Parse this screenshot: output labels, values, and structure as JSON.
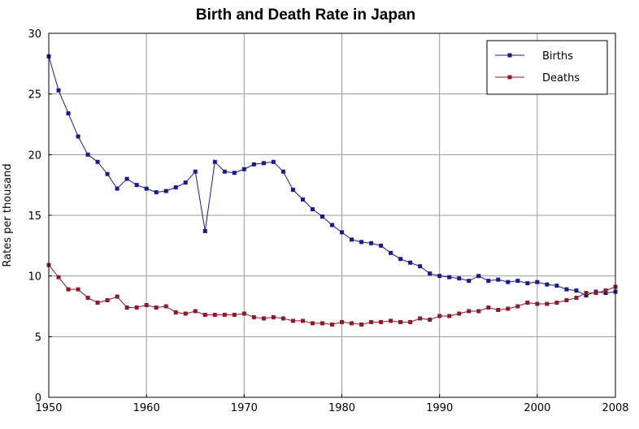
{
  "chart_data": {
    "type": "line",
    "title": "Birth and Death Rate in Japan",
    "xlabel": "",
    "ylabel": "Rates per thousand",
    "xlim": [
      1950,
      2008
    ],
    "ylim": [
      0,
      30
    ],
    "x_ticks": [
      1950,
      1960,
      1970,
      1980,
      1990,
      2000,
      2008
    ],
    "y_ticks": [
      0,
      5,
      10,
      15,
      20,
      25,
      30
    ],
    "grid": true,
    "legend_position": "top-right",
    "x": [
      1950,
      1951,
      1952,
      1953,
      1954,
      1955,
      1956,
      1957,
      1958,
      1959,
      1960,
      1961,
      1962,
      1963,
      1964,
      1965,
      1966,
      1967,
      1968,
      1969,
      1970,
      1971,
      1972,
      1973,
      1974,
      1975,
      1976,
      1977,
      1978,
      1979,
      1980,
      1981,
      1982,
      1983,
      1984,
      1985,
      1986,
      1987,
      1988,
      1989,
      1990,
      1991,
      1992,
      1993,
      1994,
      1995,
      1996,
      1997,
      1998,
      1999,
      2000,
      2001,
      2002,
      2003,
      2004,
      2005,
      2006,
      2007,
      2008
    ],
    "series": [
      {
        "name": "Births",
        "color": "#1a1a8c",
        "values": [
          28.1,
          25.3,
          23.4,
          21.5,
          20.0,
          19.4,
          18.4,
          17.2,
          18.0,
          17.5,
          17.2,
          16.9,
          17.0,
          17.3,
          17.7,
          18.6,
          13.7,
          19.4,
          18.6,
          18.5,
          18.8,
          19.2,
          19.3,
          19.4,
          18.6,
          17.1,
          16.3,
          15.5,
          14.9,
          14.2,
          13.6,
          13.0,
          12.8,
          12.7,
          12.5,
          11.9,
          11.4,
          11.1,
          10.8,
          10.2,
          10.0,
          9.9,
          9.8,
          9.6,
          10.0,
          9.6,
          9.7,
          9.5,
          9.6,
          9.4,
          9.5,
          9.3,
          9.2,
          8.9,
          8.8,
          8.4,
          8.7,
          8.6,
          8.7
        ]
      },
      {
        "name": "Deaths",
        "color": "#8b1a2b",
        "values": [
          10.9,
          9.9,
          8.9,
          8.9,
          8.2,
          7.8,
          8.0,
          8.3,
          7.4,
          7.4,
          7.6,
          7.4,
          7.5,
          7.0,
          6.9,
          7.1,
          6.8,
          6.8,
          6.8,
          6.8,
          6.9,
          6.6,
          6.5,
          6.6,
          6.5,
          6.3,
          6.3,
          6.1,
          6.1,
          6.0,
          6.2,
          6.1,
          6.0,
          6.2,
          6.2,
          6.3,
          6.2,
          6.2,
          6.5,
          6.4,
          6.7,
          6.7,
          6.9,
          7.1,
          7.1,
          7.4,
          7.2,
          7.3,
          7.5,
          7.8,
          7.7,
          7.7,
          7.8,
          8.0,
          8.2,
          8.6,
          8.6,
          8.8,
          9.1
        ]
      }
    ]
  }
}
